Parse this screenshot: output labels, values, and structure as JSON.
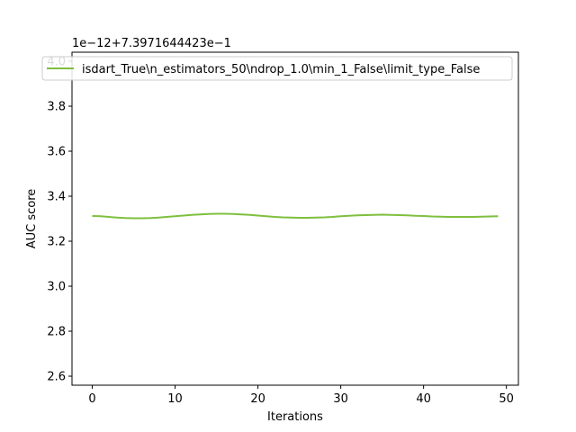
{
  "chart_data": {
    "type": "line",
    "title": "",
    "xlabel": "Iterations",
    "ylabel": "AUC score",
    "offset_label": "1e−12+7.3971644423e−1",
    "xlim": [
      -2.45,
      51.45
    ],
    "ylim": [
      2.56,
      4.04
    ],
    "x_ticks": [
      0,
      10,
      20,
      30,
      40,
      50
    ],
    "x_tick_labels": [
      "0",
      "10",
      "20",
      "30",
      "40",
      "50"
    ],
    "y_ticks": [
      2.6,
      2.8,
      3.0,
      3.2,
      3.4,
      3.6,
      3.8,
      4.0
    ],
    "y_tick_labels": [
      "2.6",
      "2.8",
      "3.0",
      "3.2",
      "3.4",
      "3.6",
      "3.8",
      "4.0"
    ],
    "grid": false,
    "legend_position": "top-left",
    "series": [
      {
        "name": "isdart_True\\n_estimators_50\\ndrop_1.0\\min_1_False\\limit_type_False",
        "color": "#7fbf3f",
        "x": [
          0,
          1,
          2,
          3,
          4,
          5,
          6,
          7,
          8,
          9,
          10,
          11,
          12,
          13,
          14,
          15,
          16,
          17,
          18,
          19,
          20,
          21,
          22,
          23,
          24,
          25,
          26,
          27,
          28,
          29,
          30,
          31,
          32,
          33,
          34,
          35,
          36,
          37,
          38,
          39,
          40,
          41,
          42,
          43,
          44,
          45,
          46,
          47,
          48,
          49
        ],
        "y": [
          3.312,
          3.311,
          3.308,
          3.305,
          3.303,
          3.302,
          3.302,
          3.303,
          3.305,
          3.308,
          3.311,
          3.314,
          3.317,
          3.319,
          3.321,
          3.322,
          3.322,
          3.321,
          3.319,
          3.317,
          3.314,
          3.311,
          3.308,
          3.306,
          3.305,
          3.304,
          3.304,
          3.305,
          3.306,
          3.308,
          3.311,
          3.313,
          3.315,
          3.316,
          3.317,
          3.318,
          3.317,
          3.316,
          3.315,
          3.313,
          3.312,
          3.31,
          3.309,
          3.308,
          3.308,
          3.308,
          3.308,
          3.309,
          3.31,
          3.311
        ]
      }
    ]
  }
}
